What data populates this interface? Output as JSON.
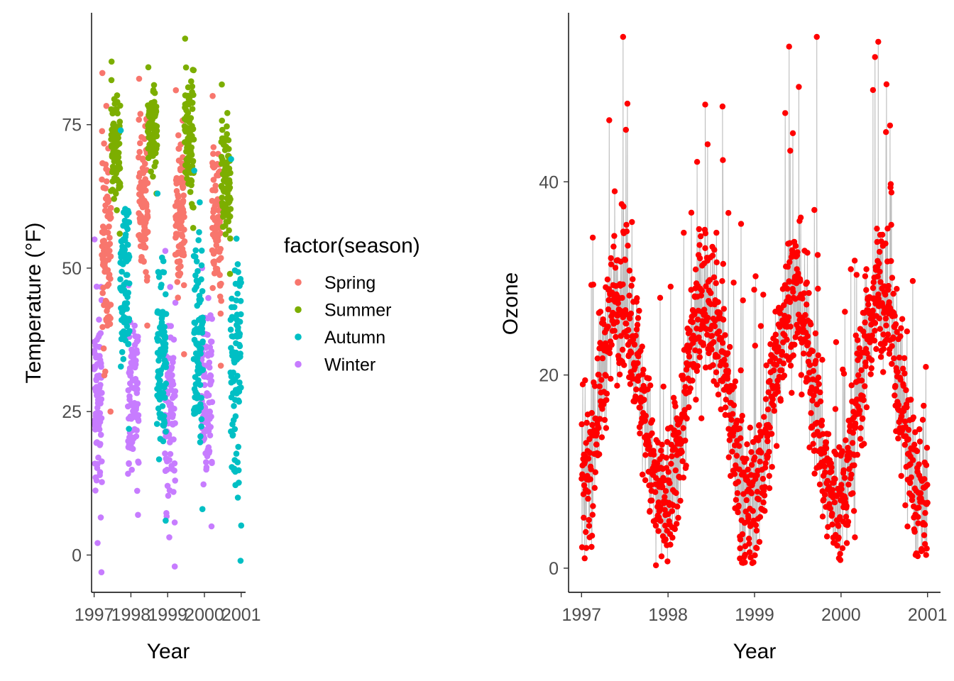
{
  "chart_data": [
    {
      "type": "scatter",
      "title": "",
      "xlabel": "Year",
      "ylabel": "Temperature (°F)",
      "xlim": [
        1996.93,
        2001.12
      ],
      "ylim": [
        -6.5,
        94.5
      ],
      "x_ticks": [
        1997,
        1998,
        1999,
        2000,
        2001
      ],
      "x_tick_labels": [
        "1997",
        "1998",
        "1999",
        "2000",
        "2001"
      ],
      "y_ticks": [
        0,
        25,
        50,
        75
      ],
      "y_tick_labels": [
        "0",
        "25",
        "50",
        "75"
      ],
      "grid": false,
      "legend": {
        "title": "factor(season)",
        "position": "right",
        "entries": [
          {
            "name": "Spring",
            "color": "#F8766D"
          },
          {
            "name": "Summer",
            "color": "#7CAE00"
          },
          {
            "name": "Autumn",
            "color": "#00BFC4"
          },
          {
            "name": "Winter",
            "color": "#C77CFF"
          }
        ]
      },
      "series_summary": [
        {
          "name": "Winter",
          "segments": [
            {
              "x_start": 1997.0,
              "x_end": 1997.21,
              "y_min": -3,
              "y_max": 55
            },
            {
              "x_start": 1997.92,
              "x_end": 1998.21,
              "y_min": 7,
              "y_max": 47
            },
            {
              "x_start": 1998.92,
              "x_end": 1999.21,
              "y_min": -2,
              "y_max": 53
            },
            {
              "x_start": 1999.92,
              "x_end": 2000.21,
              "y_min": 5,
              "y_max": 50
            }
          ]
        },
        {
          "name": "Spring",
          "segments": [
            {
              "x_start": 1997.21,
              "x_end": 1997.46,
              "y_min": 25,
              "y_max": 84
            },
            {
              "x_start": 1998.21,
              "x_end": 1998.46,
              "y_min": 40,
              "y_max": 83
            },
            {
              "x_start": 1999.21,
              "x_end": 1999.46,
              "y_min": 35,
              "y_max": 81
            },
            {
              "x_start": 2000.21,
              "x_end": 2000.46,
              "y_min": 33,
              "y_max": 80
            }
          ]
        },
        {
          "name": "Summer",
          "segments": [
            {
              "x_start": 1997.46,
              "x_end": 1997.71,
              "y_min": 56,
              "y_max": 86
            },
            {
              "x_start": 1998.46,
              "x_end": 1998.71,
              "y_min": 63,
              "y_max": 85
            },
            {
              "x_start": 1999.46,
              "x_end": 1999.71,
              "y_min": 57,
              "y_max": 90
            },
            {
              "x_start": 2000.46,
              "x_end": 2000.71,
              "y_min": 49,
              "y_max": 82
            }
          ]
        },
        {
          "name": "Autumn",
          "segments": [
            {
              "x_start": 1997.71,
              "x_end": 1997.96,
              "y_min": 22,
              "y_max": 74
            },
            {
              "x_start": 1998.71,
              "x_end": 1998.96,
              "y_min": 6,
              "y_max": 63
            },
            {
              "x_start": 1999.71,
              "x_end": 1999.96,
              "y_min": 8,
              "y_max": 67
            },
            {
              "x_start": 2000.71,
              "x_end": 2001.0,
              "y_min": -1,
              "y_max": 69
            }
          ]
        }
      ]
    },
    {
      "type": "line",
      "title": "",
      "xlabel": "Year",
      "ylabel": "Ozone",
      "xlim": [
        1996.85,
        2001.15
      ],
      "ylim": [
        -2.5,
        57.5
      ],
      "x_ticks": [
        1997,
        1998,
        1999,
        2000,
        2001
      ],
      "x_tick_labels": [
        "1997",
        "1998",
        "1999",
        "2000",
        "2001"
      ],
      "y_ticks": [
        0,
        20,
        40
      ],
      "y_tick_labels": [
        "0",
        "20",
        "40"
      ],
      "grid": false,
      "line_color": "#BEBEBE",
      "point_color": "#FF0000",
      "series_summary": [
        {
          "year": 1997,
          "winter_range": [
            6,
            22
          ],
          "summer_peak": 55,
          "typical_summer": 30
        },
        {
          "year": 1998,
          "winter_range": [
            0,
            20
          ],
          "summer_peak": 48,
          "typical_summer": 30
        },
        {
          "year": 1999,
          "winter_range": [
            1,
            17
          ],
          "summer_peak": 55,
          "typical_summer": 30
        },
        {
          "year": 2000,
          "winter_range": [
            3,
            17
          ],
          "summer_peak": 55,
          "typical_summer": 27
        },
        {
          "year": 2001,
          "winter_range": [
            3,
            12
          ],
          "summer_peak": null,
          "typical_summer": null
        }
      ]
    }
  ]
}
